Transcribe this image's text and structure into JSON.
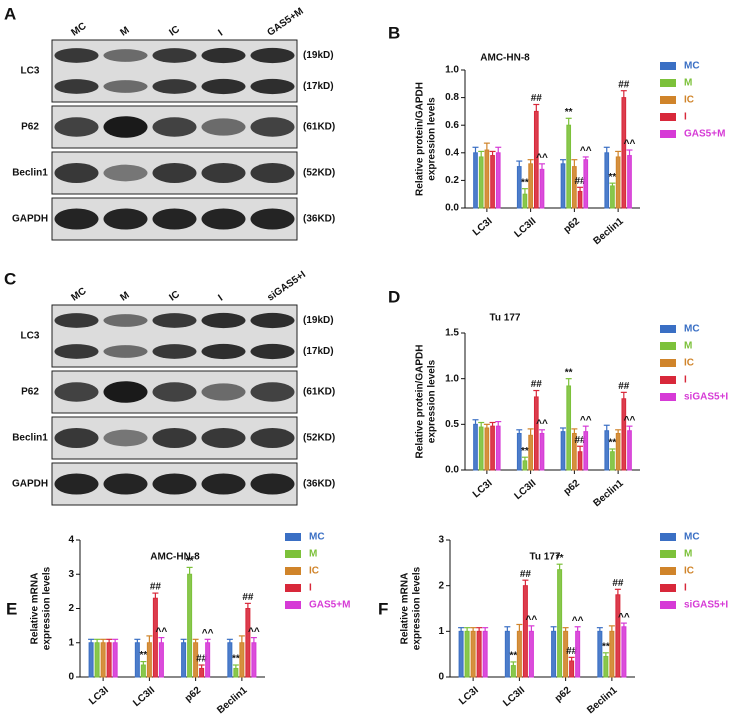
{
  "blots": [
    {
      "panel": "A",
      "lanes": [
        "MC",
        "M",
        "IC",
        "I",
        "GAS5+M"
      ],
      "rows": [
        {
          "label": "LC3",
          "sizes": [
            "(19kD)",
            "(17kD)"
          ]
        },
        {
          "label": "P62",
          "sizes": [
            "(61KD)"
          ]
        },
        {
          "label": "Beclin1",
          "sizes": [
            "(52KD)"
          ]
        },
        {
          "label": "GAPDH",
          "sizes": [
            "(36KD)"
          ]
        }
      ]
    },
    {
      "panel": "C",
      "lanes": [
        "MC",
        "M",
        "IC",
        "I",
        "siGAS5+I"
      ],
      "rows": [
        {
          "label": "LC3",
          "sizes": [
            "(19kD)",
            "(17kD)"
          ]
        },
        {
          "label": "P62",
          "sizes": [
            "(61KD)"
          ]
        },
        {
          "label": "Beclin1",
          "sizes": [
            "(52KD)"
          ]
        },
        {
          "label": "GAPDH",
          "sizes": [
            "(36KD)"
          ]
        }
      ]
    }
  ],
  "chart_data": [
    {
      "type": "bar",
      "panel": "B",
      "title": "AMC-HN-8",
      "ylabel": [
        "Relative protein/GAPDH",
        "expression levels"
      ],
      "categories": [
        "LC3I",
        "LC3II",
        "p62",
        "Beclin1"
      ],
      "ylim": [
        0,
        1.0
      ],
      "yticks": [
        {
          "value": 0,
          "label": "0.0"
        },
        0.2,
        0.4,
        0.6,
        0.8,
        {
          "value": 1.0,
          "label": "1.0"
        }
      ],
      "series": [
        {
          "name": "MC",
          "color": "#3a6fc4",
          "values": [
            0.4,
            0.3,
            0.32,
            0.4
          ],
          "errors": [
            0.04,
            0.04,
            0.03,
            0.04
          ]
        },
        {
          "name": "M",
          "color": "#7cc13a",
          "values": [
            0.37,
            0.1,
            0.6,
            0.16
          ],
          "errors": [
            0.04,
            0.04,
            0.05,
            0.02
          ],
          "sig": [
            null,
            "**",
            "**",
            "**"
          ]
        },
        {
          "name": "IC",
          "color": "#d0842a",
          "values": [
            0.42,
            0.32,
            0.3,
            0.37
          ],
          "errors": [
            0.05,
            0.03,
            0.05,
            0.04
          ]
        },
        {
          "name": "I",
          "color": "#d8283a",
          "values": [
            0.38,
            0.7,
            0.12,
            0.8
          ],
          "errors": [
            0.03,
            0.05,
            0.03,
            0.05
          ],
          "sig": [
            null,
            "##",
            "##",
            "##"
          ]
        },
        {
          "name": "GAS5+M",
          "color": "#d63ad6",
          "values": [
            0.4,
            0.28,
            0.35,
            0.38
          ],
          "errors": [
            0.04,
            0.04,
            0.02,
            0.04
          ],
          "sig": [
            null,
            "^^",
            "^^",
            "^^"
          ]
        }
      ]
    },
    {
      "type": "bar",
      "panel": "D",
      "title": "Tu 177",
      "ylabel": [
        "Relative protein/GAPDH",
        "expression levels"
      ],
      "categories": [
        "LC3I",
        "LC3II",
        "p62",
        "Beclin1"
      ],
      "ylim": [
        0,
        1.5
      ],
      "yticks": [
        {
          "value": 0,
          "label": "0.0"
        },
        0.5,
        {
          "value": 1.0,
          "label": "1.0"
        },
        1.5
      ],
      "series": [
        {
          "name": "MC",
          "color": "#3a6fc4",
          "values": [
            0.5,
            0.4,
            0.42,
            0.43
          ],
          "errors": [
            0.05,
            0.04,
            0.04,
            0.06
          ]
        },
        {
          "name": "M",
          "color": "#7cc13a",
          "values": [
            0.47,
            0.1,
            0.92,
            0.2
          ],
          "errors": [
            0.05,
            0.04,
            0.08,
            0.03
          ],
          "sig": [
            null,
            "**",
            "**",
            "**"
          ]
        },
        {
          "name": "IC",
          "color": "#d0842a",
          "values": [
            0.46,
            0.38,
            0.4,
            0.4
          ],
          "errors": [
            0.04,
            0.07,
            0.05,
            0.04
          ]
        },
        {
          "name": "I",
          "color": "#d8283a",
          "values": [
            0.48,
            0.8,
            0.2,
            0.78
          ],
          "errors": [
            0.04,
            0.07,
            0.06,
            0.07
          ],
          "sig": [
            null,
            "##",
            "##",
            "##"
          ]
        },
        {
          "name": "siGAS5+I",
          "color": "#d63ad6",
          "values": [
            0.48,
            0.4,
            0.42,
            0.43
          ],
          "errors": [
            0.05,
            0.04,
            0.06,
            0.05
          ],
          "sig": [
            null,
            "^^",
            "^^",
            "^^"
          ]
        }
      ]
    },
    {
      "type": "bar",
      "panel": "E",
      "title": "AMC-HN-8",
      "ylabel": [
        "Relative mRNA",
        "expression levels"
      ],
      "categories": [
        "LC3I",
        "LC3II",
        "p62",
        "Beclin1"
      ],
      "ylim": [
        0,
        4
      ],
      "yticks": [
        0,
        1,
        2,
        3,
        4
      ],
      "series": [
        {
          "name": "MC",
          "color": "#3a6fc4",
          "values": [
            1,
            1,
            1,
            1
          ],
          "errors": [
            0.1,
            0.1,
            0.1,
            0.1
          ]
        },
        {
          "name": "M",
          "color": "#7cc13a",
          "values": [
            1,
            0.35,
            3.0,
            0.25
          ],
          "errors": [
            0.1,
            0.1,
            0.2,
            0.1
          ],
          "sig": [
            null,
            "**",
            "**",
            "**"
          ]
        },
        {
          "name": "IC",
          "color": "#d0842a",
          "values": [
            1,
            1,
            1,
            1
          ],
          "errors": [
            0.1,
            0.2,
            0.1,
            0.2
          ]
        },
        {
          "name": "I",
          "color": "#d8283a",
          "values": [
            1,
            2.3,
            0.25,
            2.0
          ],
          "errors": [
            0.1,
            0.15,
            0.1,
            0.15
          ],
          "sig": [
            null,
            "##",
            "##",
            "##"
          ]
        },
        {
          "name": "GAS5+M",
          "color": "#d63ad6",
          "values": [
            1,
            1,
            1,
            1
          ],
          "errors": [
            0.1,
            0.15,
            0.1,
            0.15
          ],
          "sig": [
            null,
            "^^",
            "^^",
            "^^"
          ]
        }
      ]
    },
    {
      "type": "bar",
      "panel": "F",
      "title": "Tu 177",
      "ylabel": [
        "Relative mRNA",
        "expression levels"
      ],
      "categories": [
        "LC3I",
        "LC3II",
        "p62",
        "Beclin1"
      ],
      "ylim": [
        0,
        3
      ],
      "yticks": [
        0,
        1,
        2,
        3
      ],
      "series": [
        {
          "name": "MC",
          "color": "#3a6fc4",
          "values": [
            1,
            1,
            1,
            1
          ],
          "errors": [
            0.08,
            0.1,
            0.1,
            0.08
          ]
        },
        {
          "name": "M",
          "color": "#7cc13a",
          "values": [
            1,
            0.25,
            2.35,
            0.45
          ],
          "errors": [
            0.08,
            0.08,
            0.12,
            0.08
          ],
          "sig": [
            null,
            "**",
            "**",
            "**"
          ]
        },
        {
          "name": "IC",
          "color": "#d0842a",
          "values": [
            1,
            1,
            1,
            1
          ],
          "errors": [
            0.08,
            0.15,
            0.08,
            0.12
          ]
        },
        {
          "name": "I",
          "color": "#d8283a",
          "values": [
            1,
            2.0,
            0.35,
            1.8
          ],
          "errors": [
            0.08,
            0.12,
            0.08,
            0.12
          ],
          "sig": [
            null,
            "##",
            "##",
            "##"
          ]
        },
        {
          "name": "siGAS5+I",
          "color": "#d63ad6",
          "values": [
            1,
            1,
            1,
            1.1
          ],
          "errors": [
            0.08,
            0.12,
            0.1,
            0.08
          ],
          "sig": [
            null,
            "^^",
            "^^",
            "^^"
          ]
        }
      ]
    }
  ]
}
